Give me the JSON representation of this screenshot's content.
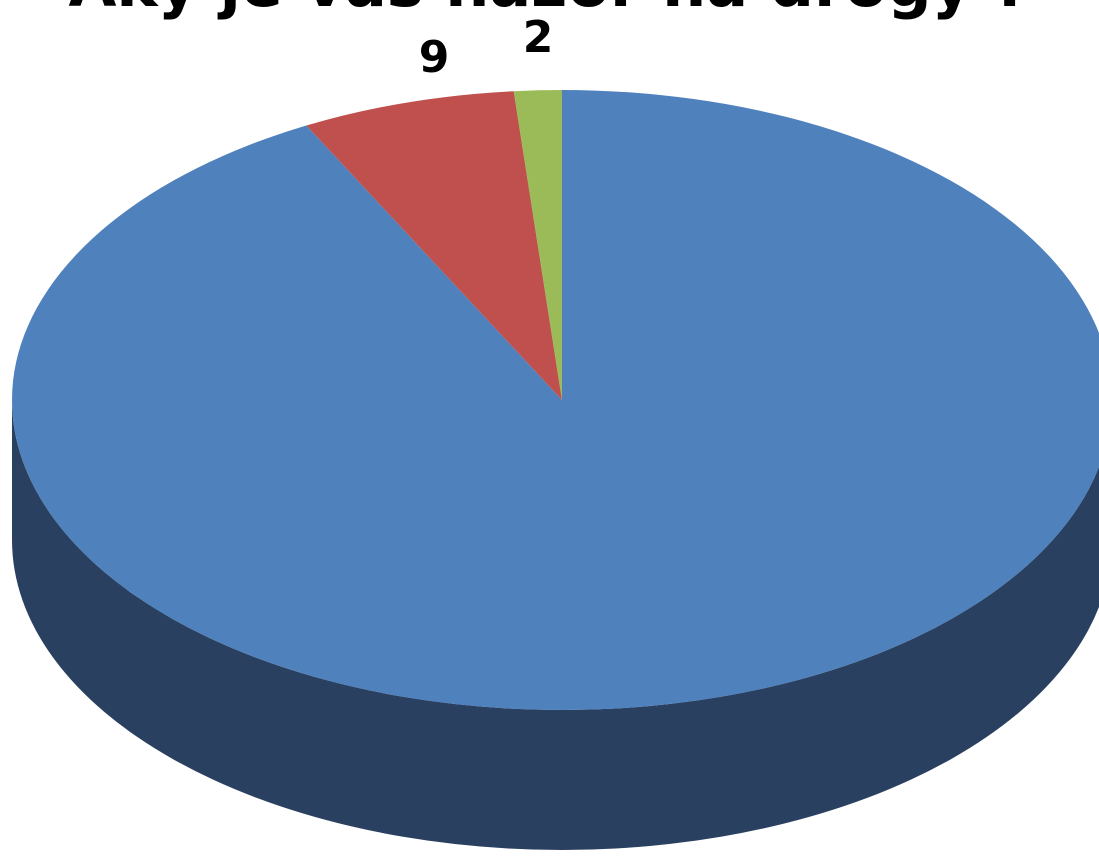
{
  "chart_data": {
    "type": "pie",
    "title": "Aký je váš názor na drogy ?",
    "three_d": true,
    "legend": "none",
    "slices": [
      {
        "name": "",
        "value": 132,
        "label": "",
        "color": "#4f81bd",
        "side_color": "#2a4060"
      },
      {
        "name": "",
        "value": 9,
        "label": "9",
        "color": "#c0504d",
        "side_color": "#7f2d2b"
      },
      {
        "name": "",
        "value": 2,
        "label": "2",
        "color": "#9bbb59",
        "side_color": "#5f7a2e"
      }
    ]
  }
}
